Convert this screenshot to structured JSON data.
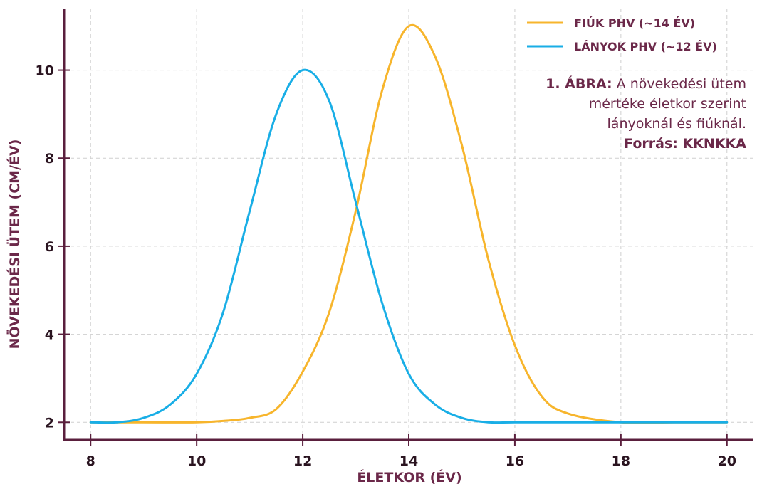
{
  "chart_data": {
    "type": "line",
    "xlabel": "ÉLETKOR (ÉV)",
    "ylabel": "NÖVEKEDÉSI ÜTEM (CM/ÉV)",
    "xlim": [
      7.5,
      20.5
    ],
    "ylim": [
      1.6,
      11.4
    ],
    "xticks": [
      8,
      10,
      12,
      14,
      16,
      18,
      20
    ],
    "yticks": [
      2,
      4,
      6,
      8,
      10
    ],
    "xtick_labels": [
      "8",
      "10",
      "12",
      "14",
      "16",
      "18",
      "20"
    ],
    "ytick_labels": [
      "2",
      "4",
      "6",
      "8",
      "10"
    ],
    "grid": true,
    "legend_position": "top-right",
    "series": [
      {
        "name": "FIÚK PHV (~14 ÉV)",
        "color": "#f7b52c",
        "x": [
          8.0,
          9.0,
          10.0,
          10.5,
          11.0,
          11.5,
          12.0,
          12.5,
          13.0,
          13.5,
          14.0,
          14.5,
          15.0,
          15.5,
          16.0,
          16.5,
          17.0,
          18.0,
          19.0,
          20.0
        ],
        "y": [
          2.0,
          2.0,
          2.0,
          2.03,
          2.1,
          2.3,
          3.15,
          4.5,
          6.8,
          9.55,
          11.0,
          10.3,
          8.3,
          5.7,
          3.75,
          2.6,
          2.2,
          2.0,
          2.0,
          2.0
        ]
      },
      {
        "name": "LÁNYOK PHV (~12 ÉV)",
        "color": "#19aee6",
        "x": [
          8.0,
          8.5,
          9.0,
          9.5,
          10.0,
          10.5,
          11.0,
          11.5,
          12.0,
          12.5,
          13.0,
          13.5,
          14.0,
          14.5,
          15.0,
          15.5,
          16.0,
          17.0,
          18.0,
          19.0,
          20.0
        ],
        "y": [
          2.0,
          2.0,
          2.1,
          2.4,
          3.1,
          4.5,
          6.8,
          9.0,
          10.0,
          9.3,
          7.0,
          4.7,
          3.1,
          2.4,
          2.1,
          2.0,
          2.0,
          2.0,
          2.0,
          2.0,
          2.0
        ]
      }
    ],
    "annotation": {
      "line1_bold": "1. ÁBRA:",
      "line1_rest": " A növekedési ütem",
      "line2": "mértéke életkor szerint",
      "line3": "lányoknál és fiúknál.",
      "line4": "Forrás: KKNKKA"
    },
    "colors": {
      "axis": "#5a1f3d",
      "grid": "#cfcfcf",
      "text_accent": "#6b2849",
      "tick_text": "#2a1420"
    }
  }
}
